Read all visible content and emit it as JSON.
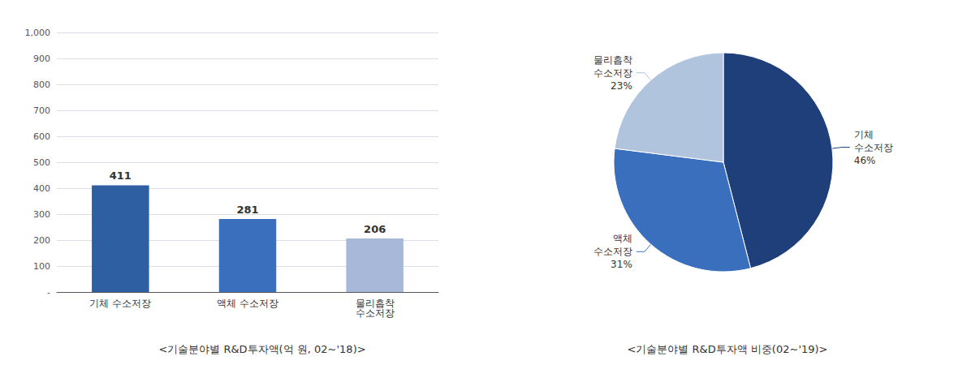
{
  "chart_data": [
    {
      "type": "bar",
      "title": "<기술분야별 R&D투자액(억 원, 02~'18)>",
      "categories": [
        "기체 수소저장",
        "액체 수소저장",
        "물리흡착\n수소저장"
      ],
      "values": [
        411,
        281,
        206
      ],
      "colors": [
        "#2e5fa3",
        "#3a6fbe",
        "#a8b8d8"
      ],
      "ylim": [
        0,
        1000
      ],
      "yticks": [
        {
          "value": 0,
          "label": "-"
        },
        100,
        200,
        300,
        400,
        500,
        600,
        700,
        800,
        900,
        {
          "value": 1000,
          "label": "1,000"
        }
      ],
      "grid": true,
      "data_labels": true
    },
    {
      "type": "pie",
      "title": "<기술분야별 R&D투자액 비중(02~'19)>",
      "categories": [
        "기체\n수소저장",
        "액체\n수소저장",
        "물리흡착\n수소저장"
      ],
      "values": [
        46,
        31,
        23
      ],
      "value_labels": [
        "46%",
        "31%",
        "23%"
      ],
      "colors": [
        "#1f3f7a",
        "#3a6fbe",
        "#b0c4de"
      ],
      "data_labels": true
    }
  ]
}
